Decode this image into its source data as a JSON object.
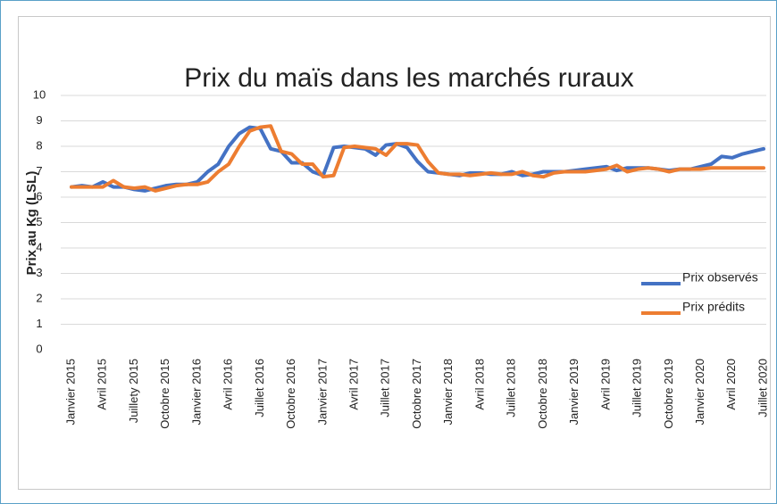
{
  "chart_data": {
    "type": "line",
    "title": "Prix du maïs dans les marchés ruraux",
    "y_label": "Prix au Kg (LSL)",
    "categories": [
      "Janvier 2015",
      null,
      null,
      "Avril 2015",
      null,
      null,
      "Juillety 2015",
      null,
      null,
      "Octobre 2015",
      null,
      null,
      "Janvier 2016",
      null,
      null,
      "Avril 2016",
      null,
      null,
      "Juillet 2016",
      null,
      null,
      "Octobre 2016",
      null,
      null,
      "Janvier 2017",
      null,
      null,
      "Avril 2017",
      null,
      null,
      "Juillet 2017",
      null,
      null,
      "Octobre 2017",
      null,
      null,
      "Janvier 2018",
      null,
      null,
      "Avril 2018",
      null,
      null,
      "Juillet 2018",
      null,
      null,
      "Octobre 2018",
      null,
      null,
      "Janvier 2019",
      null,
      null,
      "Avril 2019",
      null,
      null,
      "Juillet 2019",
      null,
      null,
      "Octobre 2019",
      null,
      null,
      "Janvier 2020",
      null,
      null,
      "Avril 2020",
      null,
      null,
      "Juillet 2020"
    ],
    "series": [
      {
        "name": "Prix observés",
        "color": "#4472c4",
        "values": [
          6.4,
          6.45,
          6.4,
          6.6,
          6.4,
          6.4,
          6.3,
          6.25,
          6.35,
          6.45,
          6.5,
          6.5,
          6.6,
          7.0,
          7.3,
          8.0,
          8.5,
          8.75,
          8.7,
          7.9,
          7.8,
          7.35,
          7.35,
          7.0,
          6.85,
          7.95,
          8.0,
          7.95,
          7.9,
          7.65,
          8.05,
          8.1,
          7.95,
          7.4,
          7.0,
          6.95,
          6.9,
          6.85,
          6.95,
          6.95,
          6.9,
          6.9,
          7.0,
          6.85,
          6.9,
          7.0,
          7.0,
          7.0,
          7.05,
          7.1,
          7.15,
          7.2,
          7.05,
          7.15,
          7.15,
          7.15,
          7.1,
          7.05,
          7.1,
          7.1,
          7.2,
          7.3,
          7.6,
          7.55,
          7.7,
          7.8,
          7.9
        ]
      },
      {
        "name": "Prix prédits",
        "color": "#ed7d31",
        "values": [
          6.4,
          6.4,
          6.4,
          6.4,
          6.65,
          6.4,
          6.35,
          6.4,
          6.25,
          6.35,
          6.45,
          6.5,
          6.5,
          6.6,
          7.0,
          7.3,
          8.0,
          8.6,
          8.75,
          8.8,
          7.8,
          7.7,
          7.3,
          7.3,
          6.8,
          6.85,
          7.95,
          8.0,
          7.95,
          7.9,
          7.65,
          8.1,
          8.1,
          8.05,
          7.4,
          6.95,
          6.9,
          6.9,
          6.85,
          6.9,
          6.95,
          6.9,
          6.9,
          7.0,
          6.85,
          6.8,
          6.95,
          7.0,
          7.0,
          7.0,
          7.05,
          7.1,
          7.25,
          7.0,
          7.1,
          7.15,
          7.1,
          7.0,
          7.1,
          7.1,
          7.1,
          7.15,
          7.15,
          7.15,
          7.15,
          7.15,
          7.15
        ]
      }
    ],
    "ylim": [
      0,
      10
    ],
    "yticks": [
      0,
      1,
      2,
      3,
      4,
      5,
      6,
      7,
      8,
      9,
      10
    ],
    "grid": true
  }
}
